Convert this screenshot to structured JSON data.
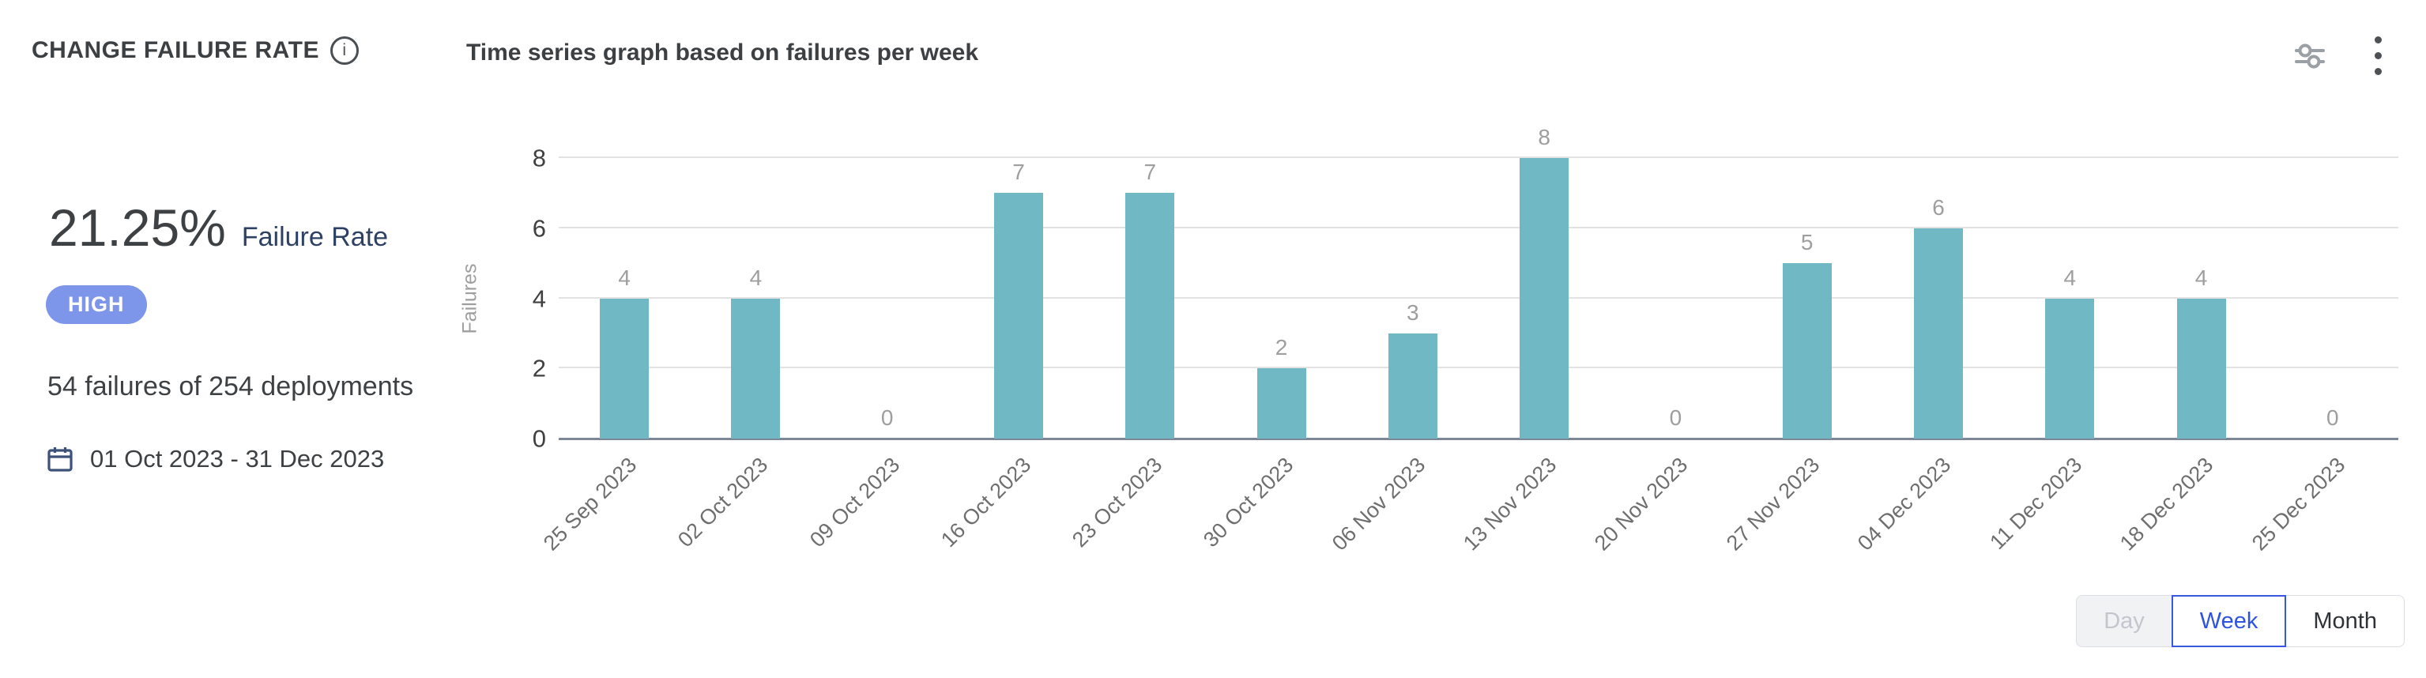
{
  "header": {
    "title": "CHANGE FAILURE RATE",
    "chart_title": "Time series graph based on failures per week"
  },
  "toolbar": {
    "settings_icon": "filter-sliders-icon",
    "menu_icon": "kebab-menu-icon"
  },
  "stats": {
    "rate_value": "21.25%",
    "rate_label": "Failure Rate",
    "severity_badge": "HIGH",
    "summary": "54 failures of 254 deployments",
    "date_range": "01 Oct 2023 - 31 Dec 2023"
  },
  "chart_data": {
    "type": "bar",
    "title": "Time series graph based on failures per week",
    "categories": [
      "25 Sep 2023",
      "02 Oct 2023",
      "09 Oct 2023",
      "16 Oct 2023",
      "23 Oct 2023",
      "30 Oct 2023",
      "06 Nov 2023",
      "13 Nov 2023",
      "20 Nov 2023",
      "27 Nov 2023",
      "04 Dec 2023",
      "11 Dec 2023",
      "18 Dec 2023",
      "25 Dec 2023"
    ],
    "values": [
      4,
      4,
      0,
      7,
      7,
      2,
      3,
      8,
      0,
      5,
      6,
      4,
      4,
      0
    ],
    "xlabel": "",
    "ylabel": "Failures",
    "ylim": [
      0,
      8
    ],
    "yticks": [
      0,
      2,
      4,
      6,
      8
    ],
    "grid": true,
    "legend": "none",
    "bar_color": "#70b8c3",
    "value_label_color": "#9e9e9e"
  },
  "granularity": {
    "options": [
      {
        "label": "Day",
        "state": "disabled"
      },
      {
        "label": "Week",
        "state": "selected"
      },
      {
        "label": "Month",
        "state": "default"
      }
    ]
  },
  "colors": {
    "accent_blue": "#3a56e4",
    "badge_blue": "#7d96ea",
    "bar_teal": "#70b8c3",
    "grid_gray": "#e2e2e2",
    "axis_gray": "#7e8798"
  }
}
